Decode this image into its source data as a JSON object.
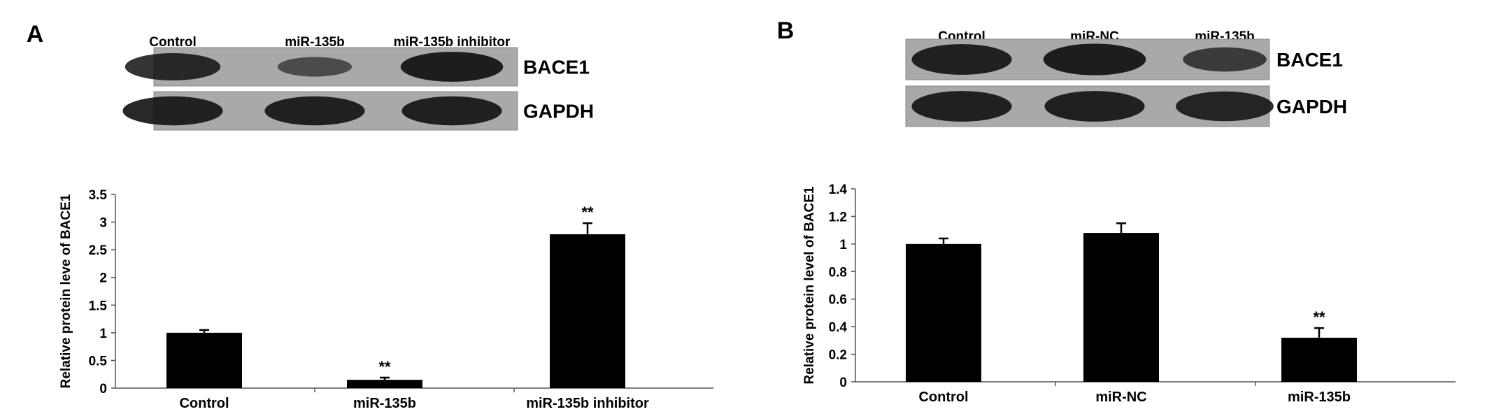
{
  "panels": [
    {
      "letter": "A",
      "blot": {
        "lane_labels": [
          "Control",
          "miR-135b",
          "miR-135b inhibitor"
        ],
        "rows": [
          {
            "label": "BACE1",
            "intensity": [
              0.8,
              0.35,
              0.95
            ]
          },
          {
            "label": "GAPDH",
            "intensity": [
              0.9,
              0.9,
              0.9
            ]
          }
        ]
      }
    },
    {
      "letter": "B",
      "blot": {
        "lane_labels": [
          "Control",
          "miR-NC",
          "miR-135b"
        ],
        "rows": [
          {
            "label": "BACE1",
            "intensity": [
              0.9,
              0.95,
              0.55
            ]
          },
          {
            "label": "GAPDH",
            "intensity": [
              0.9,
              0.9,
              0.85
            ]
          }
        ]
      }
    }
  ],
  "colors": {
    "bar": "#000000",
    "axis": "#555555",
    "blot_bg": "#a9a9a9",
    "band": "#111111"
  },
  "chart_data": [
    {
      "type": "bar",
      "categories": [
        "Control",
        "miR-135b",
        "miR-135b inhibitor"
      ],
      "values": [
        1.0,
        0.15,
        2.78
      ],
      "errors": [
        0.05,
        0.04,
        0.2
      ],
      "annotations": [
        "",
        "**",
        "**"
      ],
      "ylabel": "Relative protein leve of BACE1",
      "ylim": [
        0,
        3.5
      ],
      "yticks": [
        "0",
        "0.5",
        "1",
        "1.5",
        "2",
        "2.5",
        "3",
        "3.5"
      ],
      "grid": false
    },
    {
      "type": "bar",
      "categories": [
        "Control",
        "miR-NC",
        "miR-135b"
      ],
      "values": [
        1.0,
        1.08,
        0.32
      ],
      "errors": [
        0.04,
        0.07,
        0.07
      ],
      "annotations": [
        "",
        "",
        "**"
      ],
      "ylabel": "Relative protein level of BACE1",
      "ylim": [
        0,
        1.4
      ],
      "yticks": [
        "0",
        "0.2",
        "0.4",
        "0.6",
        "0.8",
        "1",
        "1.2",
        "1.4"
      ],
      "grid": false
    }
  ]
}
